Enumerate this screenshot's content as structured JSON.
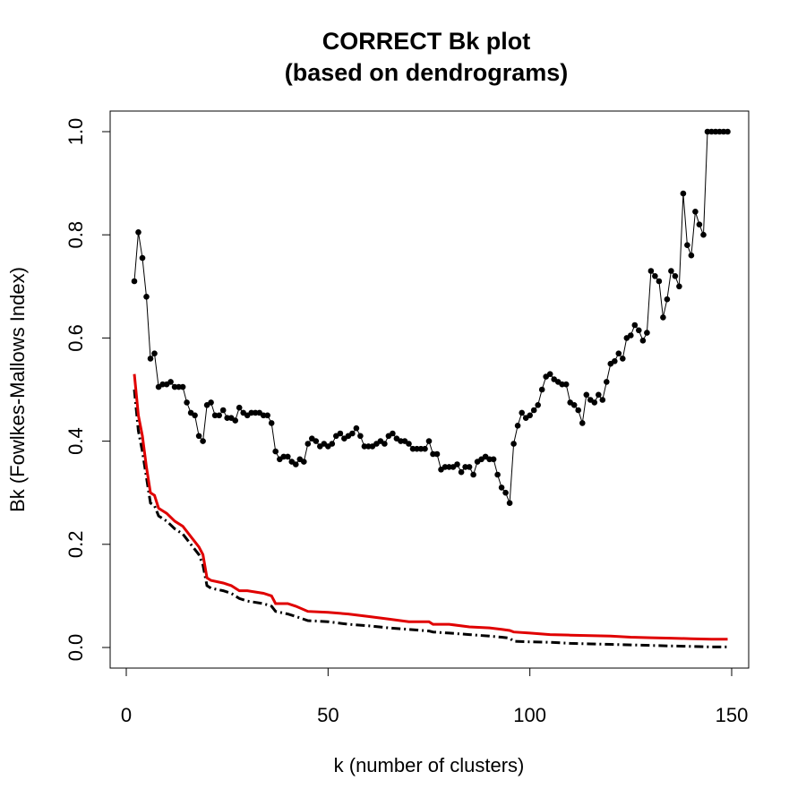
{
  "chart_data": {
    "type": "scatter",
    "title_line1": "CORRECT Bk plot",
    "title_line2": "(based on dendrograms)",
    "xlabel": "k (number of clusters)",
    "ylabel": "Bk (Fowlkes-Mallows Index)",
    "xlim": [
      0,
      150
    ],
    "ylim": [
      0,
      1
    ],
    "x_ticks": [
      0,
      50,
      100,
      150
    ],
    "x_tick_labels": [
      "0",
      "50",
      "100",
      "150"
    ],
    "y_ticks": [
      0,
      0.2,
      0.4,
      0.6,
      0.8,
      1
    ],
    "y_tick_labels": [
      "0.0",
      "0.2",
      "0.4",
      "0.6",
      "0.8",
      "1.0"
    ],
    "grid": false,
    "legend": "none",
    "colors": {
      "points": "#000000",
      "upper_line": "#e00000",
      "lower_line": "#000000"
    },
    "bk_points": {
      "x": [
        2,
        3,
        4,
        5,
        6,
        7,
        8,
        9,
        10,
        11,
        12,
        13,
        14,
        15,
        16,
        17,
        18,
        19,
        20,
        21,
        22,
        23,
        24,
        25,
        26,
        27,
        28,
        29,
        30,
        31,
        32,
        33,
        34,
        35,
        36,
        37,
        38,
        39,
        40,
        41,
        42,
        43,
        44,
        45,
        46,
        47,
        48,
        49,
        50,
        51,
        52,
        53,
        54,
        55,
        56,
        57,
        58,
        59,
        60,
        61,
        62,
        63,
        64,
        65,
        66,
        67,
        68,
        69,
        70,
        71,
        72,
        73,
        74,
        75,
        76,
        77,
        78,
        79,
        80,
        81,
        82,
        83,
        84,
        85,
        86,
        87,
        88,
        89,
        90,
        91,
        92,
        93,
        94,
        95,
        96,
        97,
        98,
        99,
        100,
        101,
        102,
        103,
        104,
        105,
        106,
        107,
        108,
        109,
        110,
        111,
        112,
        113,
        114,
        115,
        116,
        117,
        118,
        119,
        120,
        121,
        122,
        123,
        124,
        125,
        126,
        127,
        128,
        129,
        130,
        131,
        132,
        133,
        134,
        135,
        136,
        137,
        138,
        139,
        140,
        141,
        142,
        143,
        144,
        145,
        146,
        147,
        148,
        149
      ],
      "y": [
        0.71,
        0.805,
        0.755,
        0.68,
        0.56,
        0.57,
        0.505,
        0.51,
        0.51,
        0.515,
        0.505,
        0.505,
        0.505,
        0.475,
        0.455,
        0.45,
        0.41,
        0.4,
        0.47,
        0.475,
        0.45,
        0.45,
        0.46,
        0.445,
        0.445,
        0.44,
        0.465,
        0.455,
        0.45,
        0.455,
        0.455,
        0.455,
        0.45,
        0.45,
        0.435,
        0.38,
        0.365,
        0.37,
        0.37,
        0.36,
        0.355,
        0.365,
        0.36,
        0.395,
        0.405,
        0.4,
        0.39,
        0.395,
        0.39,
        0.395,
        0.41,
        0.415,
        0.405,
        0.41,
        0.415,
        0.425,
        0.41,
        0.39,
        0.39,
        0.39,
        0.395,
        0.4,
        0.395,
        0.41,
        0.415,
        0.405,
        0.4,
        0.4,
        0.395,
        0.385,
        0.385,
        0.385,
        0.385,
        0.4,
        0.375,
        0.375,
        0.345,
        0.35,
        0.35,
        0.35,
        0.355,
        0.34,
        0.35,
        0.35,
        0.335,
        0.36,
        0.365,
        0.37,
        0.365,
        0.365,
        0.335,
        0.31,
        0.3,
        0.28,
        0.395,
        0.43,
        0.455,
        0.445,
        0.45,
        0.46,
        0.47,
        0.5,
        0.525,
        0.53,
        0.52,
        0.515,
        0.51,
        0.51,
        0.475,
        0.47,
        0.46,
        0.435,
        0.49,
        0.48,
        0.475,
        0.49,
        0.48,
        0.515,
        0.55,
        0.555,
        0.57,
        0.56,
        0.6,
        0.605,
        0.625,
        0.615,
        0.595,
        0.61,
        0.73,
        0.72,
        0.71,
        0.64,
        0.675,
        0.73,
        0.72,
        0.7,
        0.88,
        0.78,
        0.76,
        0.845,
        0.82,
        0.8,
        1.0,
        1.0,
        1.0,
        1.0,
        1.0,
        1.0
      ]
    },
    "upper_line": {
      "x": [
        2,
        3,
        4,
        5,
        6,
        7,
        8,
        9,
        10,
        12,
        14,
        16,
        18,
        19,
        20,
        21,
        24,
        26,
        28,
        30,
        34,
        36,
        37,
        40,
        42,
        45,
        50,
        55,
        60,
        65,
        70,
        75,
        76,
        80,
        85,
        90,
        93,
        95,
        96,
        100,
        105,
        110,
        115,
        120,
        125,
        130,
        135,
        140,
        145,
        149
      ],
      "y": [
        0.53,
        0.45,
        0.41,
        0.35,
        0.3,
        0.295,
        0.27,
        0.265,
        0.26,
        0.245,
        0.235,
        0.215,
        0.195,
        0.18,
        0.135,
        0.13,
        0.125,
        0.12,
        0.11,
        0.11,
        0.105,
        0.1,
        0.085,
        0.085,
        0.08,
        0.07,
        0.068,
        0.065,
        0.06,
        0.055,
        0.05,
        0.05,
        0.045,
        0.045,
        0.04,
        0.038,
        0.035,
        0.033,
        0.03,
        0.028,
        0.025,
        0.024,
        0.023,
        0.022,
        0.02,
        0.019,
        0.018,
        0.017,
        0.016,
        0.016
      ]
    },
    "lower_line": {
      "x": [
        2,
        3,
        4,
        5,
        6,
        7,
        8,
        9,
        10,
        12,
        14,
        16,
        18,
        19,
        20,
        21,
        24,
        26,
        28,
        30,
        34,
        36,
        37,
        40,
        42,
        45,
        50,
        55,
        60,
        65,
        70,
        75,
        76,
        80,
        85,
        90,
        93,
        95,
        96,
        100,
        105,
        110,
        115,
        120,
        125,
        130,
        135,
        140,
        145,
        149
      ],
      "y": [
        0.5,
        0.42,
        0.38,
        0.33,
        0.28,
        0.275,
        0.255,
        0.25,
        0.245,
        0.23,
        0.22,
        0.2,
        0.18,
        0.16,
        0.12,
        0.115,
        0.11,
        0.105,
        0.095,
        0.09,
        0.085,
        0.08,
        0.07,
        0.065,
        0.06,
        0.052,
        0.05,
        0.045,
        0.042,
        0.038,
        0.035,
        0.032,
        0.03,
        0.028,
        0.025,
        0.022,
        0.02,
        0.018,
        0.012,
        0.011,
        0.01,
        0.008,
        0.007,
        0.006,
        0.005,
        0.004,
        0.003,
        0.002,
        0.001,
        0.001
      ]
    }
  }
}
